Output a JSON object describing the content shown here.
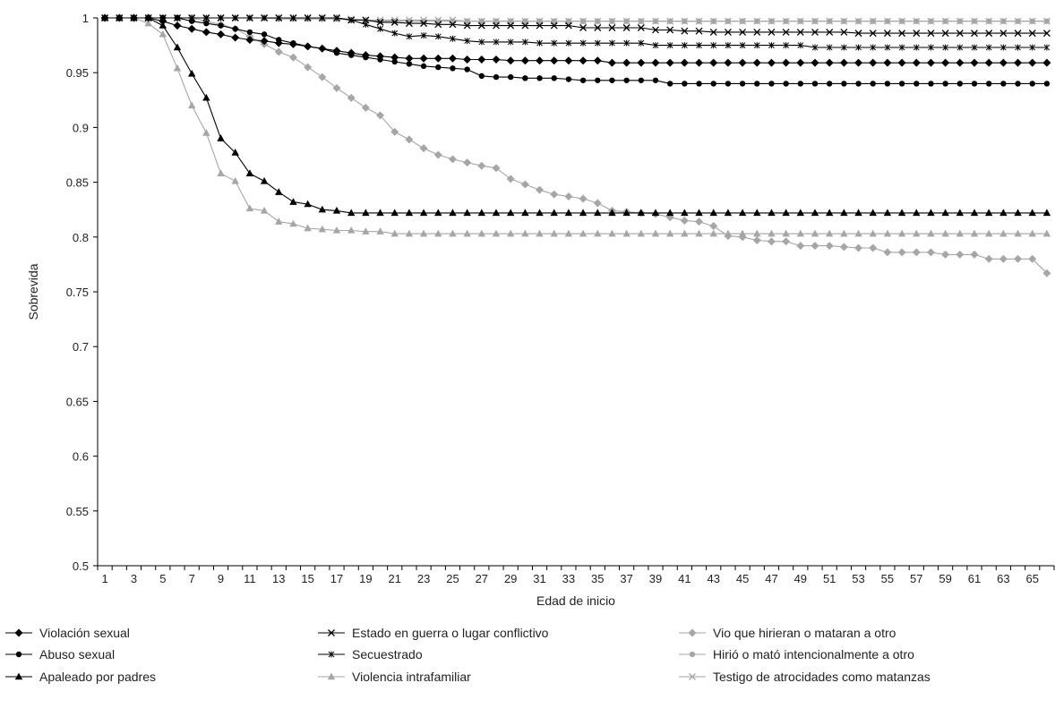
{
  "chart_data": {
    "type": "line",
    "title": "",
    "xlabel": "Edad de inicio",
    "ylabel": "Sobrevida",
    "ylim": [
      0.5,
      1
    ],
    "yticks": [
      "0.5",
      "0.55",
      "0.6",
      "0.65",
      "0.7",
      "0.75",
      "0.8",
      "0.85",
      "0.9",
      "0.95",
      "1"
    ],
    "xticks": [
      "1",
      "3",
      "5",
      "7",
      "9",
      "11",
      "13",
      "15",
      "17",
      "19",
      "21",
      "23",
      "25",
      "27",
      "29",
      "31",
      "33",
      "35",
      "37",
      "39",
      "41",
      "43",
      "45",
      "47",
      "49",
      "51",
      "53",
      "55",
      "57",
      "59",
      "61",
      "63",
      "65"
    ],
    "x_range": [
      1,
      66
    ],
    "grid": false,
    "legend_position": "bottom",
    "series": [
      {
        "name": "Violación sexual",
        "color": "#000000",
        "marker": "diamond",
        "points": [
          [
            1,
            1
          ],
          [
            4,
            1
          ],
          [
            5,
            0.997
          ],
          [
            6,
            0.993
          ],
          [
            7,
            0.99
          ],
          [
            8,
            0.987
          ],
          [
            9,
            0.985
          ],
          [
            10,
            0.982
          ],
          [
            11,
            0.98
          ],
          [
            12,
            0.979
          ],
          [
            13,
            0.977
          ],
          [
            14,
            0.976
          ],
          [
            15,
            0.974
          ],
          [
            16,
            0.972
          ],
          [
            17,
            0.97
          ],
          [
            18,
            0.968
          ],
          [
            19,
            0.966
          ],
          [
            20,
            0.965
          ],
          [
            21,
            0.964
          ],
          [
            22,
            0.963
          ],
          [
            23,
            0.963
          ],
          [
            26,
            0.962
          ],
          [
            29,
            0.961
          ],
          [
            30,
            0.961
          ],
          [
            36,
            0.959
          ],
          [
            66,
            0.959
          ]
        ]
      },
      {
        "name": "Abuso sexual",
        "color": "#000000",
        "marker": "circle",
        "points": [
          [
            1,
            1
          ],
          [
            6,
            1
          ],
          [
            7,
            0.997
          ],
          [
            8,
            0.995
          ],
          [
            9,
            0.993
          ],
          [
            10,
            0.99
          ],
          [
            11,
            0.987
          ],
          [
            12,
            0.985
          ],
          [
            13,
            0.98
          ],
          [
            14,
            0.977
          ],
          [
            15,
            0.974
          ],
          [
            16,
            0.972
          ],
          [
            17,
            0.968
          ],
          [
            18,
            0.966
          ],
          [
            19,
            0.964
          ],
          [
            20,
            0.962
          ],
          [
            21,
            0.96
          ],
          [
            22,
            0.958
          ],
          [
            23,
            0.956
          ],
          [
            24,
            0.955
          ],
          [
            25,
            0.954
          ],
          [
            26,
            0.953
          ],
          [
            27,
            0.947
          ],
          [
            28,
            0.946
          ],
          [
            29,
            0.946
          ],
          [
            30,
            0.945
          ],
          [
            33,
            0.944
          ],
          [
            34,
            0.943
          ],
          [
            39,
            0.943
          ],
          [
            40,
            0.94
          ],
          [
            66,
            0.94
          ]
        ]
      },
      {
        "name": "Apaleado por padres",
        "color": "#000000",
        "marker": "triangle",
        "points": [
          [
            1,
            1
          ],
          [
            4,
            1
          ],
          [
            5,
            0.993
          ],
          [
            6,
            0.973
          ],
          [
            7,
            0.949
          ],
          [
            8,
            0.927
          ],
          [
            9,
            0.89
          ],
          [
            10,
            0.877
          ],
          [
            11,
            0.858
          ],
          [
            12,
            0.851
          ],
          [
            13,
            0.841
          ],
          [
            14,
            0.832
          ],
          [
            15,
            0.83
          ],
          [
            16,
            0.825
          ],
          [
            17,
            0.824
          ],
          [
            18,
            0.822
          ],
          [
            66,
            0.822
          ]
        ]
      },
      {
        "name": "Estado en guerra o lugar conflictivo",
        "color": "#000000",
        "marker": "x",
        "points": [
          [
            1,
            1
          ],
          [
            17,
            1
          ],
          [
            18,
            0.998
          ],
          [
            20,
            0.996
          ],
          [
            22,
            0.995
          ],
          [
            24,
            0.994
          ],
          [
            26,
            0.993
          ],
          [
            34,
            0.991
          ],
          [
            38,
            0.991
          ],
          [
            39,
            0.989
          ],
          [
            41,
            0.988
          ],
          [
            43,
            0.987
          ],
          [
            52,
            0.987
          ],
          [
            53,
            0.986
          ],
          [
            66,
            0.986
          ]
        ]
      },
      {
        "name": "Secuestrado",
        "color": "#000000",
        "marker": "star",
        "points": [
          [
            1,
            1
          ],
          [
            17,
            1
          ],
          [
            18,
            0.998
          ],
          [
            19,
            0.994
          ],
          [
            20,
            0.99
          ],
          [
            21,
            0.986
          ],
          [
            22,
            0.983
          ],
          [
            23,
            0.984
          ],
          [
            24,
            0.983
          ],
          [
            25,
            0.981
          ],
          [
            26,
            0.979
          ],
          [
            27,
            0.978
          ],
          [
            31,
            0.977
          ],
          [
            38,
            0.977
          ],
          [
            39,
            0.975
          ],
          [
            49,
            0.975
          ],
          [
            50,
            0.973
          ],
          [
            66,
            0.973
          ]
        ]
      },
      {
        "name": "Violencia intrafamiliar",
        "color": "#a6a6a6",
        "marker": "triangle",
        "points": [
          [
            1,
            1
          ],
          [
            3,
            1
          ],
          [
            4,
            0.995
          ],
          [
            5,
            0.985
          ],
          [
            6,
            0.954
          ],
          [
            7,
            0.92
          ],
          [
            8,
            0.895
          ],
          [
            9,
            0.858
          ],
          [
            10,
            0.851
          ],
          [
            11,
            0.826
          ],
          [
            12,
            0.824
          ],
          [
            13,
            0.814
          ],
          [
            14,
            0.812
          ],
          [
            15,
            0.808
          ],
          [
            16,
            0.807
          ],
          [
            17,
            0.806
          ],
          [
            19,
            0.805
          ],
          [
            21,
            0.803
          ],
          [
            66,
            0.803
          ]
        ]
      },
      {
        "name": "Vio que hirieran o mataran a otro",
        "color": "#a6a6a6",
        "marker": "diamond",
        "points": [
          [
            1,
            1
          ],
          [
            7,
            1
          ],
          [
            8,
            0.997
          ],
          [
            9,
            0.994
          ],
          [
            10,
            0.99
          ],
          [
            11,
            0.983
          ],
          [
            12,
            0.976
          ],
          [
            13,
            0.969
          ],
          [
            14,
            0.964
          ],
          [
            15,
            0.955
          ],
          [
            16,
            0.946
          ],
          [
            17,
            0.936
          ],
          [
            18,
            0.927
          ],
          [
            19,
            0.918
          ],
          [
            20,
            0.911
          ],
          [
            21,
            0.896
          ],
          [
            22,
            0.889
          ],
          [
            23,
            0.881
          ],
          [
            24,
            0.875
          ],
          [
            25,
            0.871
          ],
          [
            26,
            0.868
          ],
          [
            27,
            0.865
          ],
          [
            28,
            0.863
          ],
          [
            29,
            0.853
          ],
          [
            30,
            0.848
          ],
          [
            31,
            0.843
          ],
          [
            32,
            0.839
          ],
          [
            33,
            0.837
          ],
          [
            34,
            0.835
          ],
          [
            35,
            0.831
          ],
          [
            36,
            0.824
          ],
          [
            37,
            0.823
          ],
          [
            38,
            0.822
          ],
          [
            39,
            0.821
          ],
          [
            40,
            0.818
          ],
          [
            41,
            0.815
          ],
          [
            42,
            0.814
          ],
          [
            43,
            0.81
          ],
          [
            44,
            0.801
          ],
          [
            45,
            0.8
          ],
          [
            46,
            0.797
          ],
          [
            47,
            0.796
          ],
          [
            48,
            0.796
          ],
          [
            49,
            0.792
          ],
          [
            52,
            0.791
          ],
          [
            53,
            0.79
          ],
          [
            54,
            0.79
          ],
          [
            55,
            0.786
          ],
          [
            58,
            0.786
          ],
          [
            59,
            0.784
          ],
          [
            61,
            0.784
          ],
          [
            62,
            0.78
          ],
          [
            64,
            0.78
          ],
          [
            65,
            0.78
          ],
          [
            66,
            0.767
          ]
        ]
      },
      {
        "name": "Hirió o mató intencionalmente a otro",
        "color": "#a6a6a6",
        "marker": "circle",
        "points": [
          [
            1,
            1
          ],
          [
            12,
            1
          ],
          [
            13,
            0.999
          ],
          [
            18,
            0.998
          ],
          [
            20,
            0.997
          ],
          [
            66,
            0.997
          ]
        ]
      },
      {
        "name": "Testigo de atrocidades como matanzas",
        "color": "#a6a6a6",
        "marker": "x",
        "points": [
          [
            1,
            1
          ],
          [
            16,
            1
          ],
          [
            17,
            0.999
          ],
          [
            19,
            0.998
          ],
          [
            26,
            0.997
          ],
          [
            66,
            0.997
          ]
        ]
      }
    ]
  }
}
